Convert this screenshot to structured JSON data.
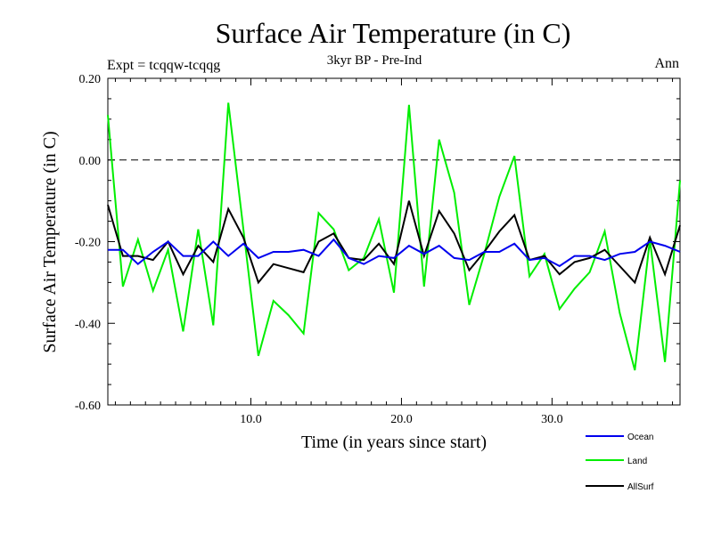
{
  "chart_data": {
    "type": "line",
    "title": "Surface Air Temperature (in C)",
    "subtitle": "3kyr BP - Pre-Ind",
    "left_label": "Expt = tcqqw-tcqqg",
    "right_label": "Ann",
    "xlabel": "Time (in years since start)",
    "ylabel": "Surface Air Temperature (in C)",
    "xlim": [
      0.5,
      38.5
    ],
    "ylim": [
      -0.6,
      0.2
    ],
    "x_ticks": [
      10,
      20,
      30
    ],
    "x_tick_labels": [
      "10.0",
      "20.0",
      "30.0"
    ],
    "y_ticks": [
      -0.6,
      -0.4,
      -0.2,
      0.0,
      0.2
    ],
    "y_tick_labels": [
      "-0.60",
      "-0.40",
      "-0.20",
      "0.00",
      "0.20"
    ],
    "reference_line": 0.0,
    "x": [
      0.5,
      1.5,
      2.5,
      3.5,
      4.5,
      5.5,
      6.5,
      7.5,
      8.5,
      9.5,
      10.5,
      11.5,
      12.5,
      13.5,
      14.5,
      15.5,
      16.5,
      17.5,
      18.5,
      19.5,
      20.5,
      21.5,
      22.5,
      23.5,
      24.5,
      25.5,
      26.5,
      27.5,
      28.5,
      29.5,
      30.5,
      31.5,
      32.5,
      33.5,
      34.5,
      35.5,
      36.5,
      37.5,
      38.5
    ],
    "series": [
      {
        "name": "Ocean",
        "color": "#0000ee",
        "values": [
          -0.22,
          -0.22,
          -0.255,
          -0.225,
          -0.2,
          -0.235,
          -0.235,
          -0.2,
          -0.235,
          -0.205,
          -0.24,
          -0.225,
          -0.225,
          -0.22,
          -0.235,
          -0.195,
          -0.24,
          -0.255,
          -0.235,
          -0.24,
          -0.21,
          -0.23,
          -0.21,
          -0.24,
          -0.245,
          -0.225,
          -0.225,
          -0.205,
          -0.245,
          -0.24,
          -0.26,
          -0.235,
          -0.235,
          -0.245,
          -0.23,
          -0.225,
          -0.2,
          -0.21,
          -0.225
        ]
      },
      {
        "name": "Land",
        "color": "#00ee00",
        "values": [
          0.11,
          -0.31,
          -0.195,
          -0.32,
          -0.22,
          -0.42,
          -0.17,
          -0.405,
          0.14,
          -0.17,
          -0.48,
          -0.345,
          -0.38,
          -0.425,
          -0.13,
          -0.17,
          -0.27,
          -0.24,
          -0.145,
          -0.325,
          0.135,
          -0.31,
          0.05,
          -0.08,
          -0.355,
          -0.23,
          -0.09,
          0.01,
          -0.285,
          -0.23,
          -0.365,
          -0.315,
          -0.275,
          -0.175,
          -0.375,
          -0.515,
          -0.195,
          -0.495,
          -0.05
        ]
      },
      {
        "name": "AllSurf",
        "color": "#000000",
        "values": [
          -0.11,
          -0.235,
          -0.235,
          -0.245,
          -0.2,
          -0.28,
          -0.21,
          -0.25,
          -0.12,
          -0.19,
          -0.3,
          -0.255,
          -0.265,
          -0.275,
          -0.2,
          -0.18,
          -0.24,
          -0.245,
          -0.205,
          -0.255,
          -0.1,
          -0.235,
          -0.125,
          -0.18,
          -0.27,
          -0.225,
          -0.175,
          -0.135,
          -0.245,
          -0.235,
          -0.28,
          -0.25,
          -0.24,
          -0.22,
          -0.26,
          -0.3,
          -0.19,
          -0.28,
          -0.16
        ]
      }
    ]
  }
}
